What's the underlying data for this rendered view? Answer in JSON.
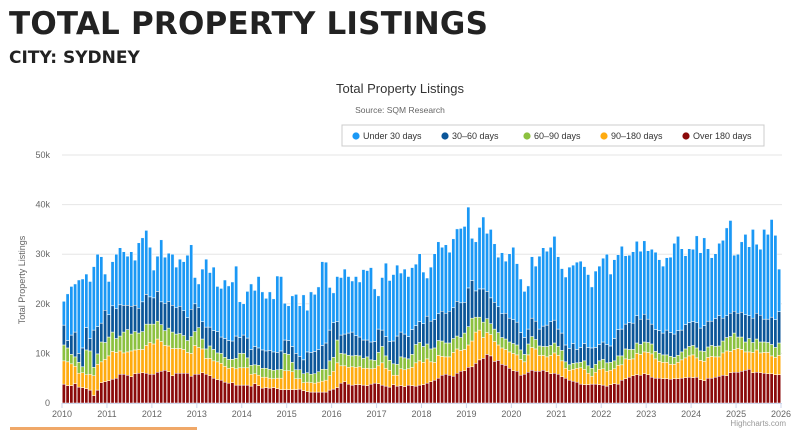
{
  "page": {
    "heading": "TOTAL PROPERTY LISTINGS",
    "city": "CITY: SYDNEY"
  },
  "chart_data": {
    "type": "bar",
    "stacked": true,
    "title": "Total Property Listings",
    "subtitle": "Source: SQM Research",
    "ylabel": "Total Property Listings",
    "xlabel": "",
    "ylim": [
      0,
      50000
    ],
    "yticks": [
      "0",
      "10k",
      "20k",
      "30k",
      "40k",
      "50k"
    ],
    "xticks": [
      "2010",
      "2011",
      "2012",
      "2013",
      "2014",
      "2015",
      "2016",
      "2017",
      "2018",
      "2019",
      "2020",
      "2021",
      "2022",
      "2023",
      "2024",
      "2025",
      "2026"
    ],
    "x_start": "2010-01",
    "x_interval": "month",
    "grid": true,
    "legend_position": "top-right",
    "credit": "Highcharts.com",
    "series": [
      {
        "name": "Under 30 days",
        "color": "#1a98f5",
        "values": [
          4800,
          9400,
          9800,
          9700,
          14800,
          13900,
          10800,
          11500,
          12800,
          14600,
          13400,
          7300,
          6700,
          8900,
          11000,
          11500,
          10800,
          9900,
          11000,
          9100,
          13200,
          12900,
          12900,
          10000,
          5600,
          7100,
          12500,
          9300,
          9700,
          10300,
          8200,
          9500,
          9900,
          12600,
          13000,
          5300,
          4800,
          10600,
          13700,
          11000,
          12800,
          9100,
          9800,
          11800,
          11000,
          11900,
          14100,
          7200,
          6300,
          9400,
          13200,
          11300,
          14400,
          11700,
          10600,
          11800,
          10700,
          15400,
          15000,
          7400,
          7000,
          10200,
          11900,
          10200,
          13100,
          8400,
          12200,
          11500,
          12600,
          16900,
          16300,
          8600,
          6000,
          9100,
          11600,
          13100,
          11400,
          10300,
          11900,
          11100,
          14200,
          14000,
          15000,
          10600,
          6700,
          10600,
          14800,
          12300,
          13400,
          14300,
          11900,
          13100,
          12100,
          12500,
          12400,
          13700,
          10400,
          7700,
          10900,
          13300,
          14500,
          12900,
          13800,
          11900,
          13900,
          14600,
          15000,
          15300,
          16300,
          8500,
          9900,
          12400,
          14500,
          11700,
          13800,
          11800,
          10000,
          12300,
          10500,
          13000,
          14600,
          11800,
          10800,
          9300,
          8700,
          12400,
          11100,
          14700,
          15800,
          14900,
          15000,
          16900,
          14600,
          13000,
          13700,
          16400,
          15800,
          17600,
          17400,
          15500,
          14700,
          12300,
          15400,
          15800,
          16900,
          18200,
          14500,
          15900,
          15100,
          16700,
          13800,
          13600,
          14400,
          15000,
          13700,
          14800,
          13800,
          15100,
          15600,
          14300,
          13500,
          14600,
          15200,
          18300,
          19000,
          16400,
          13900,
          14900,
          14600,
          17500,
          15200,
          17700,
          14600,
          12800,
          13100,
          14600,
          15700,
          17700,
          18700,
          11300,
          11900,
          14200,
          16200,
          13900,
          17900,
          13900,
          13300,
          18100,
          17100,
          19700,
          17000,
          8600
        ]
      },
      {
        "name": "30-60 days",
        "color": "#0b5699",
        "values": [
          4000,
          1500,
          3900,
          5000,
          1800,
          3800,
          4500,
          2500,
          7500,
          5500,
          3800,
          6500,
          4500,
          5300,
          6000,
          6300,
          5400,
          4900,
          5600,
          5300,
          5000,
          6000,
          6000,
          5500,
          5300,
          6000,
          4600,
          5500,
          5400,
          5400,
          5300,
          5500,
          5000,
          4600,
          5500,
          5600,
          4000,
          3500,
          4400,
          3800,
          3800,
          4300,
          3300,
          3800,
          3800,
          3700,
          4500,
          3200,
          3700,
          4000,
          3200,
          3700,
          3500,
          3700,
          3500,
          3800,
          3700,
          3500,
          3700,
          2700,
          2800,
          3200,
          3300,
          2700,
          2800,
          4200,
          4400,
          4500,
          4500,
          4800,
          5300,
          6200,
          7000,
          3700,
          3700,
          4000,
          4500,
          4800,
          4000,
          3800,
          3700,
          3400,
          3600,
          3800,
          4700,
          3300,
          3900,
          3800,
          4600,
          5700,
          5000,
          4800,
          4500,
          5000,
          3800,
          4200,
          4600,
          5600,
          5600,
          5700,
          5400,
          6000,
          6000,
          6400,
          6200,
          7000,
          7000,
          6200,
          7800,
          7600,
          5300,
          5700,
          6700,
          5500,
          5200,
          5400,
          5200,
          4800,
          5200,
          4800,
          4800,
          4600,
          3500,
          3400,
          3000,
          3700,
          3700,
          3400,
          4100,
          4300,
          4800,
          4600,
          3500,
          3500,
          3400,
          3300,
          4000,
          2700,
          3000,
          3500,
          3700,
          4100,
          3400,
          3300,
          3500,
          3700,
          3300,
          4500,
          5300,
          5400,
          5000,
          5400,
          5300,
          5500,
          5100,
          5600,
          4700,
          4000,
          4400,
          4600,
          4400,
          5000,
          4800,
          4700,
          5000,
          4400,
          4900,
          4800,
          4800,
          5100,
          4600,
          5200,
          5200,
          4900,
          5600,
          6100,
          4600,
          4400,
          4700,
          4400,
          4800,
          5000,
          5500,
          4600,
          4900,
          5200,
          5400,
          4600,
          4700,
          5500,
          5600,
          6300
        ]
      },
      {
        "name": "60-90 days",
        "color": "#8cc13f",
        "values": [
          3200,
          2800,
          1900,
          1900,
          2200,
          1200,
          5000,
          4700,
          1700,
          2100,
          4000,
          3400,
          3800,
          3900,
          2800,
          3000,
          4200,
          4500,
          3400,
          3700,
          3300,
          3600,
          4300,
          3700,
          4000,
          3600,
          3400,
          3000,
          3600,
          3300,
          2900,
          3000,
          2800,
          2400,
          3400,
          2800,
          4000,
          2000,
          1900,
          2500,
          2300,
          1800,
          2000,
          1800,
          1800,
          1600,
          2100,
          2900,
          2900,
          2000,
          1800,
          1800,
          2000,
          1800,
          1800,
          1800,
          1700,
          1700,
          1800,
          3500,
          3300,
          1900,
          1800,
          1800,
          1800,
          1900,
          1700,
          1900,
          2100,
          2400,
          2200,
          3000,
          2800,
          4600,
          2500,
          2400,
          2400,
          2200,
          2400,
          2200,
          2000,
          2300,
          1800,
          1600,
          2700,
          3300,
          2500,
          2000,
          2300,
          2200,
          2400,
          2400,
          2000,
          2600,
          3700,
          3700,
          3200,
          3000,
          2600,
          2900,
          3000,
          3100,
          2800,
          2800,
          2800,
          2600,
          2600,
          3300,
          3700,
          4600,
          3000,
          2600,
          3100,
          2800,
          2200,
          2500,
          2500,
          2100,
          2100,
          2000,
          2000,
          2000,
          1900,
          1500,
          2200,
          2200,
          1900,
          1900,
          1800,
          2100,
          2000,
          2000,
          1800,
          2100,
          1300,
          1100,
          1200,
          1100,
          1100,
          1700,
          1500,
          1600,
          1600,
          1700,
          1900,
          1700,
          1600,
          1600,
          1900,
          1800,
          2000,
          2000,
          1900,
          2100,
          2000,
          2000,
          2000,
          2000,
          1500,
          1600,
          1500,
          1500,
          1600,
          1400,
          1400,
          1600,
          1800,
          1900,
          1900,
          2000,
          1900,
          2000,
          2100,
          2200,
          2100,
          2200,
          2400,
          2700,
          3000,
          3300,
          2300,
          2500,
          2000,
          2700,
          2000,
          2200,
          2200,
          2100,
          2000,
          2300,
          2000,
          2500
        ]
      },
      {
        "name": "90-180 days",
        "color": "#ffab0f",
        "values": [
          4700,
          4800,
          4400,
          3500,
          2800,
          3000,
          2800,
          3200,
          4000,
          5200,
          4200,
          4500,
          5000,
          5600,
          5200,
          4700,
          4300,
          4700,
          5200,
          4800,
          4800,
          4700,
          5600,
          6400,
          6100,
          6700,
          6000,
          5000,
          5200,
          5500,
          5000,
          5000,
          4800,
          4200,
          4600,
          5800,
          5400,
          4800,
          3200,
          3500,
          3500,
          3600,
          3400,
          3200,
          3000,
          3100,
          3300,
          3500,
          3500,
          3500,
          2400,
          2000,
          2100,
          2200,
          2100,
          2000,
          1800,
          2100,
          2300,
          3800,
          3800,
          3600,
          2200,
          2100,
          1600,
          1900,
          1900,
          1800,
          2000,
          2200,
          2400,
          2900,
          3600,
          5000,
          3500,
          3200,
          3400,
          3700,
          3500,
          3600,
          3400,
          3500,
          3100,
          3000,
          3600,
          4500,
          3600,
          3400,
          1900,
          2200,
          3400,
          3400,
          3300,
          3700,
          4700,
          4900,
          4500,
          4900,
          4000,
          3600,
          4600,
          3800,
          3500,
          3700,
          4800,
          4900,
          4200,
          4300,
          4500,
          5200,
          6300,
          6000,
          4200,
          4400,
          4300,
          4000,
          3100,
          3300,
          3200,
          3300,
          3500,
          3300,
          3200,
          2500,
          3500,
          4600,
          4500,
          3200,
          3000,
          3000,
          3700,
          4100,
          3800,
          3200,
          2000,
          2000,
          2400,
          2800,
          3300,
          3100,
          2300,
          1600,
          2400,
          3100,
          3300,
          3000,
          2900,
          3000,
          3800,
          3100,
          4000,
          3600,
          3400,
          4300,
          4200,
          4400,
          4500,
          4700,
          3900,
          3400,
          3300,
          3300,
          3000,
          2900,
          3300,
          3700,
          4000,
          4300,
          4600,
          3900,
          3900,
          3900,
          4200,
          4400,
          4100,
          3900,
          4500,
          5000,
          4300,
          4600,
          4800,
          4400,
          3700,
          3500,
          4100,
          4500,
          4000,
          4200,
          4300,
          3600,
          3500,
          3900
        ]
      },
      {
        "name": "Over 180 days",
        "color": "#8b0a0a",
        "values": [
          3800,
          3500,
          3500,
          3900,
          3200,
          3100,
          2900,
          2600,
          1500,
          2600,
          4100,
          4300,
          4500,
          4800,
          5000,
          5800,
          5800,
          5600,
          5300,
          5900,
          6000,
          6100,
          6000,
          5800,
          5800,
          6200,
          6400,
          6600,
          6300,
          5500,
          6000,
          6000,
          6000,
          6000,
          5400,
          5800,
          5800,
          6100,
          5800,
          5500,
          5000,
          4700,
          4600,
          4200,
          4000,
          4100,
          3600,
          3600,
          3600,
          3600,
          3400,
          3900,
          3500,
          3000,
          3100,
          3000,
          3100,
          2900,
          2700,
          2700,
          2700,
          2700,
          2700,
          2800,
          2500,
          2300,
          2200,
          2200,
          2200,
          2200,
          2200,
          2600,
          2800,
          3100,
          4000,
          4300,
          3800,
          3600,
          3700,
          3700,
          3600,
          3500,
          3800,
          4000,
          3900,
          3600,
          3400,
          3200,
          3700,
          3400,
          3500,
          3300,
          3600,
          3500,
          3400,
          3600,
          3700,
          4000,
          4300,
          4600,
          5000,
          5600,
          5800,
          5600,
          5400,
          6000,
          6400,
          6500,
          7200,
          7300,
          8000,
          8700,
          9000,
          9800,
          9500,
          8400,
          8600,
          7800,
          7600,
          7000,
          6500,
          6400,
          5600,
          5800,
          6200,
          6600,
          6400,
          6400,
          6600,
          6300,
          5900,
          6000,
          5800,
          5300,
          5000,
          4600,
          4400,
          4200,
          3800,
          3700,
          3700,
          3800,
          3800,
          3700,
          3600,
          3400,
          3700,
          3900,
          3800,
          4600,
          4900,
          5200,
          5500,
          5700,
          5600,
          5900,
          5700,
          5200,
          5000,
          5000,
          4900,
          4900,
          4800,
          4900,
          4900,
          5000,
          5100,
          5200,
          5100,
          5200,
          4700,
          4500,
          5000,
          5000,
          5200,
          5400,
          5600,
          5500,
          6100,
          6200,
          6200,
          6400,
          6600,
          6800,
          6100,
          6200,
          6100,
          6000,
          5900,
          5900,
          5700,
          5700
        ]
      }
    ]
  }
}
